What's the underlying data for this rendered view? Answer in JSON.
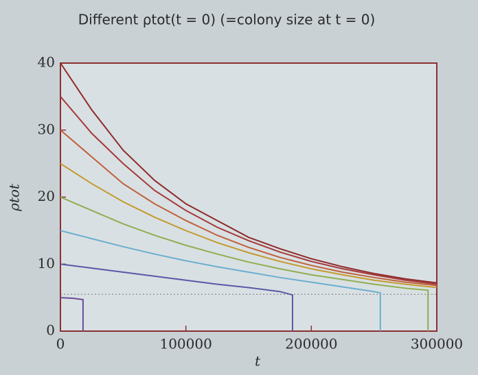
{
  "chart_data": {
    "type": "line",
    "title": "Different ρtot(t = 0) (=colony size at t = 0)",
    "x_label": "t",
    "y_label": "ρtot",
    "xlim": [
      0,
      300000
    ],
    "xticks": [
      0,
      100000,
      200000,
      300000
    ],
    "ylim": [
      0,
      40
    ],
    "yticks": [
      0,
      10,
      20,
      30,
      40
    ],
    "reference_line": 5.5,
    "series": [
      {
        "color": "#8e2a2a",
        "x": [
          0,
          25000,
          50000,
          75000,
          100000,
          125000,
          150000,
          175000,
          200000,
          225000,
          250000,
          275000,
          300000
        ],
        "values": [
          40,
          33,
          27,
          22.5,
          19,
          16.5,
          14,
          12.3,
          10.8,
          9.6,
          8.6,
          7.8,
          7.2
        ]
      },
      {
        "color": "#a63838",
        "x": [
          0,
          25000,
          50000,
          75000,
          100000,
          125000,
          150000,
          175000,
          200000,
          225000,
          250000,
          275000,
          300000
        ],
        "values": [
          35,
          29.5,
          25,
          21,
          18,
          15.5,
          13.5,
          11.8,
          10.4,
          9.3,
          8.4,
          7.6,
          7.0
        ]
      },
      {
        "color": "#c0603a",
        "x": [
          0,
          25000,
          50000,
          75000,
          100000,
          125000,
          150000,
          175000,
          200000,
          225000,
          250000,
          275000,
          300000
        ],
        "values": [
          30,
          26,
          22,
          19,
          16.5,
          14.3,
          12.5,
          11,
          9.8,
          8.8,
          8,
          7.3,
          6.8
        ]
      },
      {
        "color": "#c49a2e",
        "x": [
          0,
          25000,
          50000,
          75000,
          100000,
          125000,
          150000,
          175000,
          200000,
          225000,
          250000,
          275000,
          300000
        ],
        "values": [
          25,
          22,
          19.3,
          17,
          15,
          13.2,
          11.7,
          10.4,
          9.3,
          8.4,
          7.6,
          7,
          6.5
        ]
      },
      {
        "color": "#8fae50",
        "x": [
          0,
          25000,
          50000,
          75000,
          100000,
          125000,
          150000,
          175000,
          200000,
          225000,
          250000,
          275000,
          293000,
          293000
        ],
        "values": [
          20,
          18,
          16,
          14.3,
          12.8,
          11.5,
          10.3,
          9.3,
          8.4,
          7.7,
          7.0,
          6.4,
          6.1,
          0
        ]
      },
      {
        "color": "#6aaed0",
        "x": [
          0,
          25000,
          50000,
          75000,
          100000,
          125000,
          150000,
          175000,
          200000,
          225000,
          250000,
          255000,
          255000
        ],
        "values": [
          15,
          13.8,
          12.6,
          11.5,
          10.5,
          9.6,
          8.8,
          8.0,
          7.3,
          6.6,
          5.9,
          5.7,
          0
        ]
      },
      {
        "color": "#5858a8",
        "x": [
          0,
          25000,
          50000,
          75000,
          100000,
          125000,
          150000,
          175000,
          185000,
          185000
        ],
        "values": [
          10,
          9.4,
          8.8,
          8.2,
          7.6,
          7.0,
          6.5,
          5.9,
          5.4,
          0
        ]
      },
      {
        "color": "#6a4a9a",
        "x": [
          0,
          10000,
          18000,
          18000
        ],
        "values": [
          5,
          4.9,
          4.7,
          0
        ]
      }
    ]
  }
}
